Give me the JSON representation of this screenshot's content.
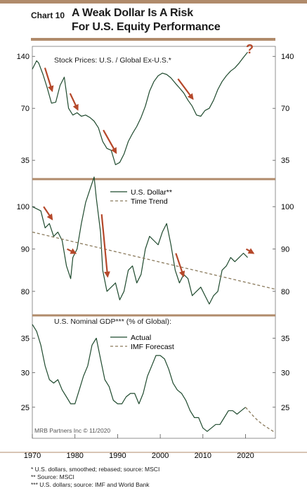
{
  "header": {
    "chart_number": "Chart 10",
    "title_line1": "A Weak Dollar Is A Risk",
    "title_line2": "For U.S. Equity Performance"
  },
  "source_credit": "MRB Partners Inc © 11/2020",
  "footnotes": [
    "*    U.S. dollars, smoothed; rebased; source: MSCI",
    "**   Source: MSCI",
    "***  U.S. dollars; source: IMF and World Bank"
  ],
  "colors": {
    "line": "#1f4a2e",
    "trend": "#8a7a5c",
    "arrow": "#b5482a",
    "accent_rule": "#b08b6b"
  },
  "chart_data": [
    {
      "type": "line",
      "panel": "stocks",
      "title": "Stock Prices: U.S. / Global Ex-U.S.*",
      "y_scale": "log",
      "ylim": [
        28,
        160
      ],
      "yticks": [
        35,
        70,
        140
      ],
      "annotation": "?",
      "series": [
        {
          "x": [
            1970.0,
            1971.0,
            1971.5,
            1972.5,
            1973.5,
            1974.5,
            1975.5,
            1976.5,
            1977.5,
            1978.5,
            1979.5,
            1980.5,
            1981.5,
            1982.5,
            1983.5,
            1984.5,
            1985.5,
            1986.5,
            1987.5,
            1988.5,
            1989.5,
            1990.5,
            1991.5,
            1992.5,
            1993.5,
            1994.5,
            1995.5,
            1996.5,
            1997.5,
            1998.5,
            1999.5,
            2000.5,
            2001.5,
            2002.5,
            2003.5,
            2004.5,
            2005.5,
            2006.5,
            2007.5,
            2008.5,
            2009.5,
            2010.5,
            2011.5,
            2012.5,
            2013.5,
            2014.5,
            2015.5,
            2016.5,
            2017.5,
            2018.5,
            2019.5,
            2020.5
          ],
          "values": [
            118,
            132,
            128,
            110,
            92,
            75,
            76,
            95,
            106,
            70,
            64,
            66,
            63,
            64,
            62,
            59,
            54,
            45,
            41,
            40,
            33,
            34,
            38,
            45,
            50,
            55,
            62,
            72,
            88,
            100,
            108,
            112,
            110,
            105,
            98,
            92,
            86,
            78,
            72,
            64,
            63,
            68,
            70,
            78,
            90,
            100,
            108,
            115,
            120,
            128,
            138,
            148
          ]
        }
      ],
      "arrows": [
        [
          1972.3,
          1974.0
        ],
        [
          1978.2,
          1980.0
        ],
        [
          1986.0,
          1989.0
        ],
        [
          2003.5,
          2007.0
        ]
      ]
    },
    {
      "type": "line",
      "panel": "dollar",
      "ylim": [
        75,
        106
      ],
      "yticks": [
        80,
        90,
        100
      ],
      "series": [
        {
          "name": "U.S. Dollar**",
          "x": [
            1970.0,
            1971.0,
            1972.0,
            1973.0,
            1974.0,
            1975.0,
            1976.0,
            1977.0,
            1978.0,
            1979.0,
            1979.5,
            1980.5,
            1981.5,
            1982.5,
            1983.5,
            1984.5,
            1985.0,
            1986.0,
            1986.5,
            1987.5,
            1988.5,
            1989.5,
            1990.5,
            1991.5,
            1992.5,
            1993.5,
            1994.5,
            1995.5,
            1996.5,
            1997.5,
            1998.5,
            1999.5,
            2000.5,
            2001.5,
            2002.5,
            2003.5,
            2004.5,
            2005.5,
            2006.5,
            2007.5,
            2008.5,
            2009.5,
            2010.5,
            2011.5,
            2012.5,
            2013.5,
            2014.5,
            2015.5,
            2016.5,
            2017.5,
            2018.5,
            2019.5,
            2020.5
          ],
          "values": [
            100,
            99.5,
            99,
            95,
            96,
            93,
            94,
            92,
            86,
            83,
            88,
            90,
            96,
            101,
            104,
            107,
            102,
            94,
            85,
            80,
            81,
            82,
            78,
            80,
            85,
            86,
            82,
            84,
            90,
            93,
            92,
            91,
            94,
            96,
            91,
            85,
            82,
            84,
            83,
            79,
            80,
            81,
            79,
            77,
            79,
            80,
            85,
            86,
            88,
            87,
            88,
            89,
            88
          ]
        },
        {
          "name": "Time Trend",
          "x": [
            1970,
            2027
          ],
          "values": [
            94,
            80.5
          ]
        }
      ],
      "arrows": [
        [
          1972.0,
          1974.0
        ],
        [
          1977.5,
          1979.5
        ],
        [
          1985.6,
          1987.0
        ],
        [
          2003.0,
          2004.8
        ],
        [
          2019.5,
          2021.2
        ]
      ]
    },
    {
      "type": "line",
      "panel": "gdp",
      "title": "U.S. Nominal GDP*** (% of Global):",
      "ylim": [
        20.5,
        38
      ],
      "yticks": [
        25,
        30,
        35
      ],
      "series": [
        {
          "name": "Actual",
          "x": [
            1970,
            1971,
            1972,
            1973,
            1974,
            1975,
            1976,
            1977,
            1978,
            1979,
            1980,
            1981,
            1982,
            1983,
            1984,
            1985,
            1986,
            1987,
            1988,
            1989,
            1990,
            1991,
            1992,
            1993,
            1994,
            1995,
            1996,
            1997,
            1998,
            1999,
            2000,
            2001,
            2002,
            2003,
            2004,
            2005,
            2006,
            2007,
            2008,
            2009,
            2010,
            2011,
            2012,
            2013,
            2014,
            2015,
            2016,
            2017,
            2018,
            2019,
            2020
          ],
          "values": [
            37,
            36,
            34,
            31,
            29,
            28.5,
            29,
            27.5,
            26.5,
            25.5,
            25.5,
            27.5,
            29.5,
            31,
            34,
            35,
            32,
            29,
            28,
            26,
            25.5,
            25.5,
            26.5,
            27,
            27,
            25.5,
            27,
            29.5,
            31,
            32.5,
            32.5,
            32,
            30.5,
            28.5,
            27.5,
            27,
            26,
            24.5,
            23.5,
            23.5,
            22,
            21.5,
            22,
            22.5,
            22.5,
            23.5,
            24.5,
            24.5,
            24,
            24.5,
            25
          ]
        },
        {
          "name": "IMF Forecast",
          "x": [
            2020,
            2021,
            2022,
            2023,
            2024,
            2025,
            2026,
            2027
          ],
          "values": [
            25,
            24.3,
            23.6,
            23,
            22.5,
            22.1,
            21.7,
            21.3
          ]
        }
      ]
    }
  ],
  "x_axis": {
    "ticks": [
      1970,
      1980,
      1990,
      2000,
      2010,
      2020
    ],
    "range": [
      1970,
      2027
    ]
  }
}
